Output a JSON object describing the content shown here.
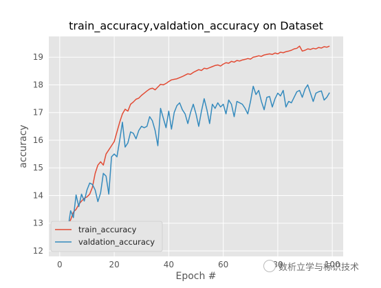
{
  "chart_data": {
    "type": "line",
    "title": "train_accuracy,valdation_accuracy on Dataset",
    "xlabel": "Epoch #",
    "ylabel": "accuracy",
    "xlim": [
      -4,
      104
    ],
    "ylim": [
      11.8,
      19.75
    ],
    "xticks": [
      0,
      20,
      40,
      60,
      80,
      100
    ],
    "yticks": [
      12,
      13,
      14,
      15,
      16,
      17,
      18,
      19
    ],
    "grid": true,
    "legend_position": "lower-left",
    "series": [
      {
        "name": "train_accuracy",
        "color": "#e24a33",
        "values": [
          12.12,
          12.62,
          12.95,
          12.95,
          13.12,
          13.4,
          13.5,
          13.68,
          13.8,
          13.9,
          13.95,
          14.05,
          14.3,
          14.8,
          15.1,
          15.22,
          15.1,
          15.5,
          15.65,
          15.8,
          15.95,
          16.3,
          16.65,
          16.95,
          17.12,
          17.05,
          17.3,
          17.38,
          17.48,
          17.52,
          17.62,
          17.7,
          17.78,
          17.85,
          17.88,
          17.82,
          17.92,
          18.02,
          18.0,
          18.05,
          18.12,
          18.18,
          18.2,
          18.22,
          18.26,
          18.3,
          18.35,
          18.4,
          18.38,
          18.45,
          18.5,
          18.55,
          18.52,
          18.6,
          18.58,
          18.62,
          18.66,
          18.7,
          18.72,
          18.68,
          18.75,
          18.8,
          18.78,
          18.85,
          18.82,
          18.88,
          18.86,
          18.9,
          18.92,
          18.95,
          18.93,
          19.0,
          19.02,
          19.05,
          19.03,
          19.08,
          19.1,
          19.12,
          19.1,
          19.15,
          19.12,
          19.18,
          19.16,
          19.2,
          19.22,
          19.25,
          19.3,
          19.32,
          19.4,
          19.22,
          19.25,
          19.3,
          19.28,
          19.32,
          19.3,
          19.35,
          19.33,
          19.38,
          19.36,
          19.4
        ]
      },
      {
        "name": "valdation_accuracy",
        "color": "#348abd",
        "values": [
          12.2,
          12.55,
          13.0,
          12.8,
          13.45,
          13.2,
          14.02,
          13.6,
          14.05,
          13.8,
          14.2,
          14.45,
          14.4,
          14.2,
          13.78,
          14.1,
          14.8,
          14.7,
          14.05,
          15.4,
          15.5,
          15.4,
          16.0,
          16.65,
          15.75,
          15.9,
          16.3,
          16.25,
          16.05,
          16.35,
          16.5,
          16.45,
          16.5,
          16.85,
          16.7,
          16.35,
          15.8,
          17.15,
          16.8,
          16.45,
          17.05,
          16.4,
          17.0,
          17.25,
          17.35,
          17.1,
          16.95,
          16.6,
          17.0,
          17.3,
          16.95,
          16.5,
          17.05,
          17.5,
          17.1,
          16.6,
          17.3,
          17.15,
          17.35,
          17.2,
          17.3,
          16.95,
          17.45,
          17.3,
          16.85,
          17.4,
          17.35,
          17.3,
          17.15,
          16.95,
          17.4,
          17.95,
          17.65,
          17.8,
          17.4,
          17.1,
          17.55,
          17.58,
          17.2,
          17.5,
          17.7,
          17.6,
          17.8,
          17.2,
          17.4,
          17.35,
          17.55,
          17.75,
          17.8,
          17.55,
          17.85,
          18.0,
          17.7,
          17.4,
          17.7,
          17.75,
          17.78,
          17.45,
          17.55,
          17.72
        ]
      }
    ]
  },
  "watermark": {
    "text": "数析立学与标识技术",
    "icon": "chat-bubble-icon"
  }
}
